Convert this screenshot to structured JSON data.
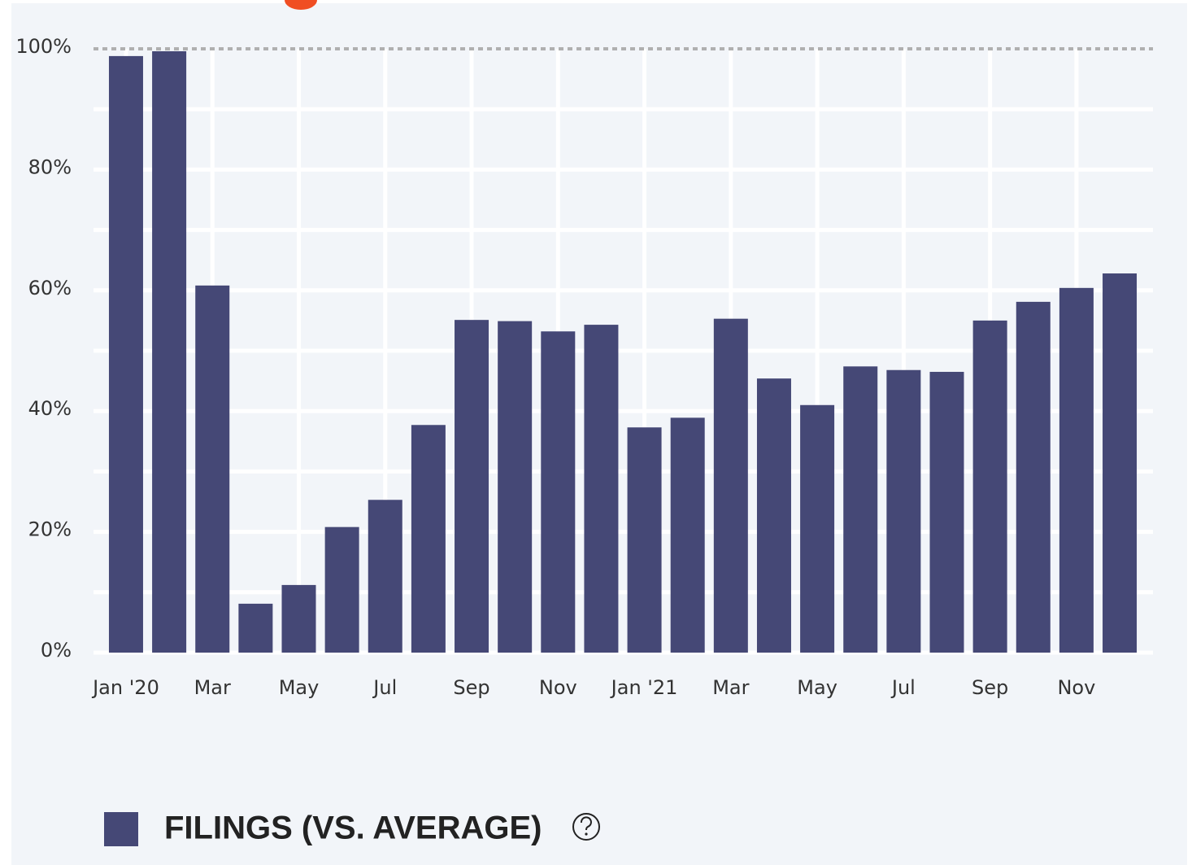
{
  "chart_data": {
    "type": "bar",
    "categories": [
      "Jan '20",
      null,
      "Mar",
      null,
      "May",
      null,
      "Jul",
      null,
      "Sep",
      null,
      "Nov",
      null,
      "Jan '21",
      null,
      "Mar",
      null,
      "May",
      null,
      "Jul",
      null,
      "Sep",
      null,
      "Nov",
      null
    ],
    "series": [
      {
        "name": "FILINGS (VS. AVERAGE)",
        "color": "#454876",
        "values": [
          98.8,
          99.6,
          60.8,
          8.1,
          11.2,
          20.8,
          25.3,
          37.7,
          55.1,
          54.9,
          53.2,
          54.3,
          37.3,
          38.9,
          55.3,
          45.4,
          41.0,
          47.4,
          46.8,
          46.5,
          55.0,
          58.1,
          60.4,
          62.8
        ]
      }
    ],
    "ylim": [
      0,
      100
    ],
    "yticks": [
      {
        "value": 0,
        "label": "0%"
      },
      {
        "value": 20,
        "label": "20%"
      },
      {
        "value": 40,
        "label": "40%"
      },
      {
        "value": 60,
        "label": "60%"
      },
      {
        "value": 80,
        "label": "80%"
      },
      {
        "value": 100,
        "label": "100%"
      }
    ],
    "minor_yticks": [
      10,
      30,
      50,
      70,
      90
    ],
    "grid": true
  }
}
